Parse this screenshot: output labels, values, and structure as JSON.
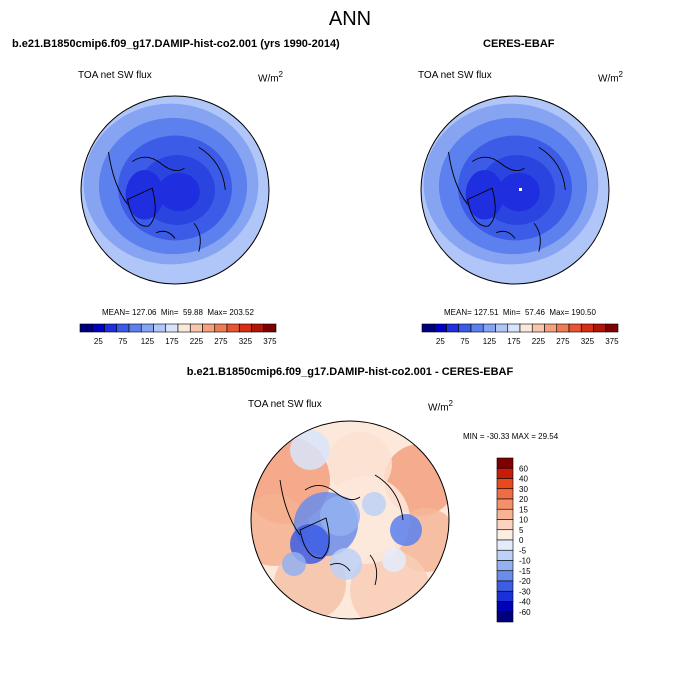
{
  "chart_data": [
    {
      "type": "heatmap",
      "title": "b.e21.B1850cmip6.f09_g17.DAMIP-hist-co2.001 (yrs 1990-2014)",
      "variable": "TOA net SW flux",
      "units_base": "W/m",
      "units_exp": "2",
      "stats": {
        "mean": "127.06",
        "min": "59.88",
        "max": "203.52"
      },
      "colorbar": {
        "labels": [
          "25",
          "75",
          "125",
          "175",
          "225",
          "275",
          "325",
          "375"
        ],
        "colors": [
          "#00007f",
          "#0000c4",
          "#1f2fe0",
          "#3c5ce8",
          "#5c80ee",
          "#87a4f3",
          "#b0c6f8",
          "#d8e4fb",
          "#fde8dc",
          "#f9c6ad",
          "#f5a17e",
          "#f07c56",
          "#e85530",
          "#d62f14",
          "#b01505",
          "#7f0000"
        ]
      }
    },
    {
      "type": "heatmap",
      "title": "CERES-EBAF",
      "variable": "TOA net SW flux",
      "units_base": "W/m",
      "units_exp": "2",
      "stats": {
        "mean": "127.51",
        "min": "57.46",
        "max": "190.50"
      },
      "colorbar": {
        "labels": [
          "25",
          "75",
          "125",
          "175",
          "225",
          "275",
          "325",
          "375"
        ],
        "colors": [
          "#00007f",
          "#0000c4",
          "#1f2fe0",
          "#3c5ce8",
          "#5c80ee",
          "#87a4f3",
          "#b0c6f8",
          "#d8e4fb",
          "#fde8dc",
          "#f9c6ad",
          "#f5a17e",
          "#f07c56",
          "#e85530",
          "#d62f14",
          "#b01505",
          "#7f0000"
        ]
      }
    },
    {
      "type": "heatmap",
      "title": "b.e21.B1850cmip6.f09_g17.DAMIP-hist-co2.001 - CERES-EBAF",
      "variable": "TOA net SW flux",
      "units_base": "W/m",
      "units_exp": "2",
      "stats_label": "MIN = -30.33  MAX =  29.54",
      "colorbar": {
        "labels": [
          "60",
          "40",
          "30",
          "20",
          "15",
          "10",
          "5",
          "0",
          "-5",
          "-10",
          "-15",
          "-20",
          "-30",
          "-40",
          "-60"
        ],
        "colors": [
          "#7f0000",
          "#c91c08",
          "#e84a20",
          "#f06c44",
          "#f4916a",
          "#f7b394",
          "#fbd3be",
          "#fdeee2",
          "#e4ecfb",
          "#bdd0f6",
          "#93b0f0",
          "#6a8cea",
          "#3d5de4",
          "#1a30d8",
          "#0000b4",
          "#00007f"
        ]
      }
    }
  ],
  "page": {
    "title": "ANN"
  }
}
